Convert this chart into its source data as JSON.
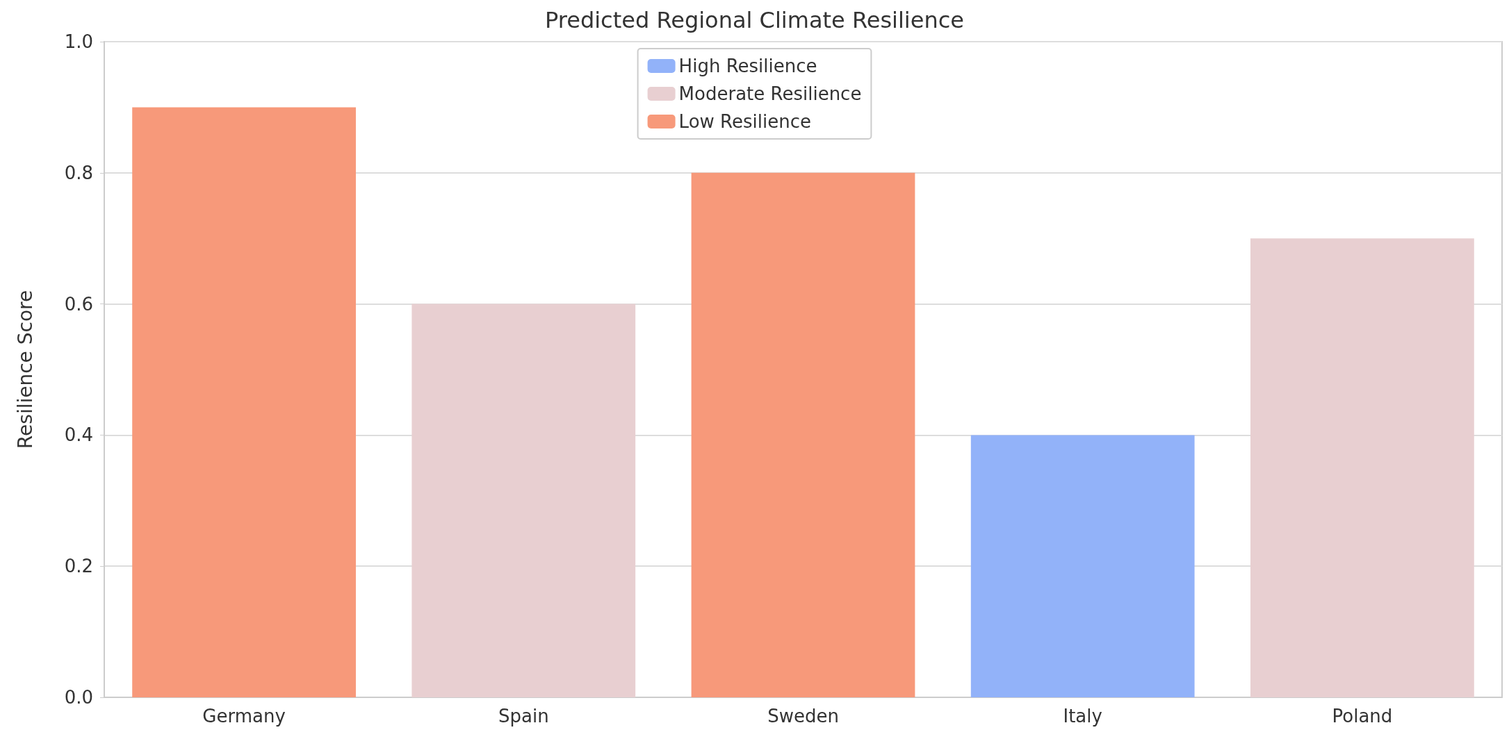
{
  "chart_data": {
    "type": "bar",
    "title": "Predicted Regional Climate Resilience",
    "ylabel": "Resilience Score",
    "categories": [
      "Germany",
      "Spain",
      "Sweden",
      "Italy",
      "Poland"
    ],
    "series": [
      {
        "name": "High Resilience",
        "color": "#92b2f9",
        "values": [
          null,
          null,
          null,
          0.4,
          null
        ]
      },
      {
        "name": "Moderate Resilience",
        "color": "#e8cfd1",
        "values": [
          null,
          0.6,
          null,
          null,
          0.7
        ]
      },
      {
        "name": "Low Resilience",
        "color": "#f7997a",
        "values": [
          0.9,
          null,
          0.8,
          null,
          null
        ]
      }
    ],
    "ylim": [
      0,
      1
    ],
    "yticks": [
      {
        "value": 0,
        "label": "0.0"
      },
      0.2,
      0.4,
      0.6,
      0.8,
      {
        "value": 1,
        "label": "1.0"
      }
    ],
    "grid": "y",
    "legend": "top"
  }
}
